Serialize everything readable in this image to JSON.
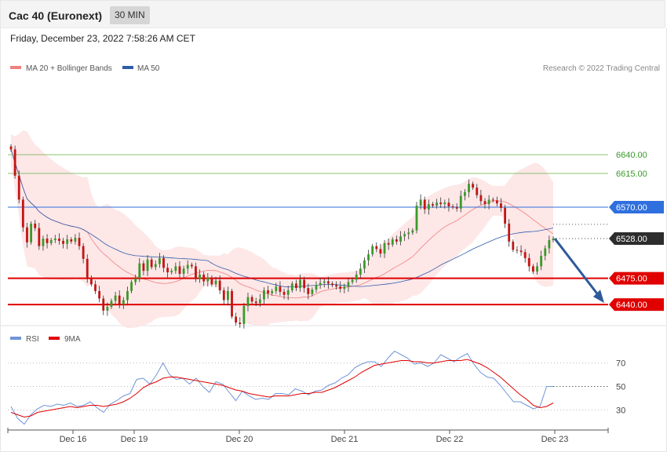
{
  "header": {
    "title": "Cac 40 (Euronext)",
    "interval": "30 MIN"
  },
  "datetime": "Friday, December 23, 2022 7:58:26 AM CET",
  "legend": {
    "bollinger_label": "MA 20 + Bollinger Bands",
    "ma50_label": "MA 50",
    "credit": "Research © 2022 Trading Central",
    "rsi_label": "RSI",
    "rsi_ma_label": "9MA"
  },
  "colors": {
    "bollinger": "#f08080",
    "bollinger_fill": "#fde3e3",
    "ma50": "#2e5caa",
    "up": "#3a9a2a",
    "down": "#c41414",
    "support": "#e00000",
    "resistance_green": "#8cc070",
    "pivot_blue": "#2f6fde",
    "arrow": "#2e5a99",
    "rsi": "#6f94d8",
    "rsi_ma": "#e00000"
  },
  "chart_data": [
    {
      "type": "candlestick",
      "x_labels": [
        "Dec 16",
        "Dec 19",
        "Dec 20",
        "Dec 21",
        "Dec 22",
        "Dec 23"
      ],
      "ylim": [
        6415,
        6750
      ],
      "levels": [
        {
          "label": "6640.00",
          "value": 6640,
          "kind": "resistance"
        },
        {
          "label": "6615.00",
          "value": 6615,
          "kind": "resistance"
        },
        {
          "label": "6570.00",
          "value": 6570,
          "kind": "pivot"
        },
        {
          "label": "6528.00",
          "value": 6528,
          "kind": "last"
        },
        {
          "label": "6475.00",
          "value": 6475,
          "kind": "support"
        },
        {
          "label": "6440.00",
          "value": 6440,
          "kind": "support"
        }
      ],
      "forecast": {
        "from": 6528,
        "to": 6440
      },
      "closes": [
        6647,
        6612,
        6580,
        6543,
        6523,
        6548,
        6542,
        6518,
        6528,
        6522,
        6526,
        6528,
        6525,
        6521,
        6527,
        6524,
        6529,
        6518,
        6501,
        6476,
        6467,
        6458,
        6448,
        6432,
        6437,
        6445,
        6452,
        6440,
        6446,
        6458,
        6470,
        6475,
        6495,
        6485,
        6500,
        6490,
        6494,
        6502,
        6489,
        6483,
        6485,
        6491,
        6481,
        6488,
        6493,
        6491,
        6474,
        6480,
        6471,
        6476,
        6467,
        6472,
        6459,
        6446,
        6458,
        6424,
        6416,
        6414,
        6438,
        6450,
        6444,
        6442,
        6447,
        6459,
        6455,
        6458,
        6464,
        6457,
        6453,
        6459,
        6468,
        6462,
        6473,
        6462,
        6454,
        6460,
        6466,
        6469,
        6471,
        6468,
        6466,
        6464,
        6461,
        6464,
        6470,
        6473,
        6480,
        6488,
        6499,
        6507,
        6518,
        6514,
        6508,
        6522,
        6520,
        6527,
        6524,
        6531,
        6534,
        6536,
        6539,
        6572,
        6580,
        6567,
        6574,
        6572,
        6576,
        6574,
        6576,
        6571,
        6570,
        6568,
        6585,
        6590,
        6601,
        6596,
        6586,
        6578,
        6574,
        6580,
        6579,
        6575,
        6569,
        6548,
        6524,
        6513,
        6512,
        6510,
        6502,
        6491,
        6484,
        6491,
        6505,
        6515,
        6526,
        6528
      ]
    },
    {
      "type": "line",
      "title": "RSI",
      "ylim": [
        15,
        85
      ],
      "y_ticks": [
        30,
        50,
        70
      ],
      "series": [
        {
          "name": "RSI",
          "values": [
            33,
            23,
            18,
            26,
            31,
            34,
            33,
            35,
            34,
            36,
            33,
            34,
            37,
            32,
            28,
            35,
            38,
            42,
            44,
            56,
            57,
            52,
            60,
            70,
            60,
            56,
            57,
            52,
            57,
            50,
            45,
            54,
            52,
            45,
            38,
            46,
            42,
            39,
            40,
            39,
            44,
            44,
            43,
            48,
            46,
            43,
            46,
            47,
            51,
            53,
            57,
            60,
            66,
            69,
            71,
            71,
            67,
            74,
            80,
            77,
            74,
            69,
            70,
            67,
            70,
            77,
            74,
            71,
            75,
            78,
            69,
            62,
            58,
            57,
            51,
            44,
            37,
            37,
            34,
            31,
            33,
            50,
            50
          ]
        },
        {
          "name": "9MA",
          "values": [
            28,
            26,
            24,
            25,
            28,
            29,
            30,
            31,
            32,
            33,
            32,
            33,
            34,
            34,
            33,
            34,
            35,
            37,
            40,
            44,
            49,
            52,
            54,
            57,
            58,
            58,
            57,
            56,
            55,
            54,
            53,
            52,
            51,
            49,
            47,
            46,
            44,
            43,
            42,
            41,
            42,
            42,
            42,
            43,
            44,
            44,
            45,
            45,
            47,
            49,
            52,
            55,
            58,
            62,
            65,
            68,
            69,
            70,
            71,
            72,
            72,
            71,
            71,
            70,
            70,
            71,
            72,
            72,
            72,
            73,
            71,
            69,
            66,
            62,
            58,
            53,
            48,
            43,
            39,
            34,
            32,
            33,
            36
          ]
        }
      ]
    }
  ]
}
